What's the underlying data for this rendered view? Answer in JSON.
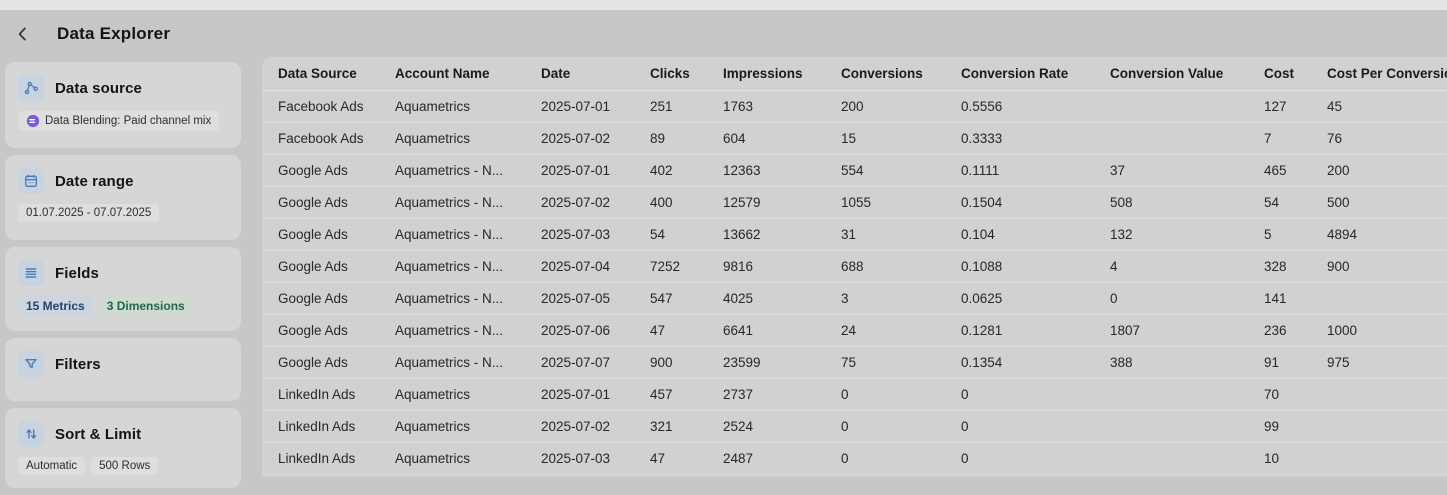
{
  "colors": {
    "accent_blue": "#4a7bb5",
    "blend_purple": "#7b5bd6",
    "metrics_blue": "#23456b",
    "dimensions_green": "#20664a"
  },
  "header": {
    "title": "Data Explorer"
  },
  "sidebar": {
    "cards": [
      {
        "title": "Data source",
        "badge": "Data Blending: Paid channel mix"
      },
      {
        "title": "Date range",
        "badge": "01.07.2025 - 07.07.2025"
      },
      {
        "title": "Fields",
        "badges": [
          "15 Metrics",
          "3 Dimensions"
        ]
      },
      {
        "title": "Filters"
      },
      {
        "title": "Sort & Limit",
        "badges": [
          "Automatic",
          "500 Rows"
        ]
      }
    ]
  },
  "table": {
    "columns": [
      "Data Source",
      "Account Name",
      "Date",
      "Clicks",
      "Impressions",
      "Conversions",
      "Conversion Rate",
      "Conversion Value",
      "Cost",
      "Cost Per Conversion"
    ],
    "rows": [
      [
        "Facebook Ads",
        "Aquametrics",
        "2025-07-01",
        "251",
        "1763",
        "200",
        "0.5556",
        "",
        "127",
        "45"
      ],
      [
        "Facebook Ads",
        "Aquametrics",
        "2025-07-02",
        "89",
        "604",
        "15",
        "0.3333",
        "",
        "7",
        "76"
      ],
      [
        "Google Ads",
        "Aquametrics - N...",
        "2025-07-01",
        "402",
        "12363",
        "554",
        "0.1111",
        "37",
        "465",
        "200"
      ],
      [
        "Google Ads",
        "Aquametrics - N...",
        "2025-07-02",
        "400",
        "12579",
        "1055",
        "0.1504",
        "508",
        "54",
        "500"
      ],
      [
        "Google Ads",
        "Aquametrics - N...",
        "2025-07-03",
        "54",
        "13662",
        "31",
        "0.104",
        "132",
        "5",
        "4894"
      ],
      [
        "Google Ads",
        "Aquametrics - N...",
        "2025-07-04",
        "7252",
        "9816",
        "688",
        "0.1088",
        "4",
        "328",
        "900"
      ],
      [
        "Google Ads",
        "Aquametrics - N...",
        "2025-07-05",
        "547",
        "4025",
        "3",
        "0.0625",
        "0",
        "141",
        ""
      ],
      [
        "Google Ads",
        "Aquametrics - N...",
        "2025-07-06",
        "47",
        "6641",
        "24",
        "0.1281",
        "1807",
        "236",
        "1000"
      ],
      [
        "Google Ads",
        "Aquametrics - N...",
        "2025-07-07",
        "900",
        "23599",
        "75",
        "0.1354",
        "388",
        "91",
        "975"
      ],
      [
        "LinkedIn Ads",
        "Aquametrics",
        "2025-07-01",
        "457",
        "2737",
        "0",
        "0",
        "",
        "70",
        ""
      ],
      [
        "LinkedIn Ads",
        "Aquametrics",
        "2025-07-02",
        "321",
        "2524",
        "0",
        "0",
        "",
        "99",
        ""
      ],
      [
        "LinkedIn Ads",
        "Aquametrics",
        "2025-07-03",
        "47",
        "2487",
        "0",
        "0",
        "",
        "10",
        ""
      ]
    ]
  }
}
